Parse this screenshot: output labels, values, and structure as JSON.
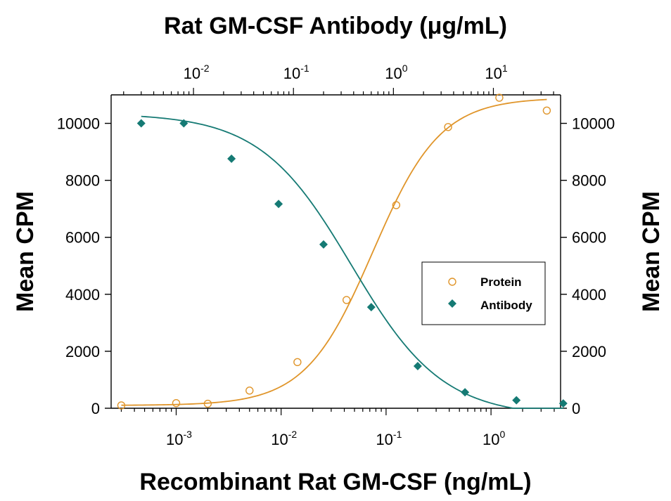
{
  "chart_data": {
    "type": "scatter",
    "title_top": "Rat GM-CSF Antibody (μg/mL)",
    "xlabel": "Recombinant Rat GM-CSF (ng/mL)",
    "ylabel_left": "Mean CPM",
    "ylabel_right": "Mean CPM",
    "x_scale": "log",
    "x_top_scale": "log",
    "bottom_ticks": [
      {
        "base": "10",
        "exp": "-3",
        "value": 0.001
      },
      {
        "base": "10",
        "exp": "-2",
        "value": 0.01
      },
      {
        "base": "10",
        "exp": "-1",
        "value": 0.1
      },
      {
        "base": "10",
        "exp": "0",
        "value": 1
      }
    ],
    "top_ticks": [
      {
        "base": "10",
        "exp": "-2",
        "value": 0.01
      },
      {
        "base": "10",
        "exp": "-1",
        "value": 0.1
      },
      {
        "base": "10",
        "exp": "0",
        "value": 1
      },
      {
        "base": "10",
        "exp": "1",
        "value": 10
      }
    ],
    "y_ticks": [
      "0",
      "2000",
      "4000",
      "6000",
      "8000",
      "10000"
    ],
    "ylim": [
      0,
      11000
    ],
    "xlim": [
      0.00024,
      4.6
    ],
    "x_top_lim": [
      0.0015,
      47
    ],
    "series": [
      {
        "name": "Protein",
        "marker": "open-circle",
        "color": "#e0952a",
        "axis": "bottom",
        "x": [
          0.0003,
          0.001,
          0.002,
          0.005,
          0.0143,
          0.042,
          0.125,
          0.39,
          1.2,
          3.4
        ],
        "y": [
          100,
          180,
          160,
          620,
          1620,
          3800,
          7130,
          9870,
          10900,
          10450
        ],
        "fit": {
          "bottom": 100,
          "top": 10900,
          "ec50": 0.075,
          "hill": 1.35
        }
      },
      {
        "name": "Antibody",
        "marker": "filled-diamond",
        "color": "#157a74",
        "axis": "top",
        "x": [
          0.003,
          0.008,
          0.024,
          0.071,
          0.2,
          0.6,
          1.75,
          5.2,
          17,
          50
        ],
        "y": [
          10000,
          10000,
          8760,
          7170,
          5750,
          3550,
          1480,
          560,
          280,
          170
        ],
        "fit": {
          "bottom": -300,
          "top": 10350,
          "ec50": 0.38,
          "hill": 0.95
        }
      }
    ],
    "legend_position": "center-right",
    "colors": {
      "protein": "#e0952a",
      "antibody": "#157a74",
      "axis": "#000000"
    }
  }
}
